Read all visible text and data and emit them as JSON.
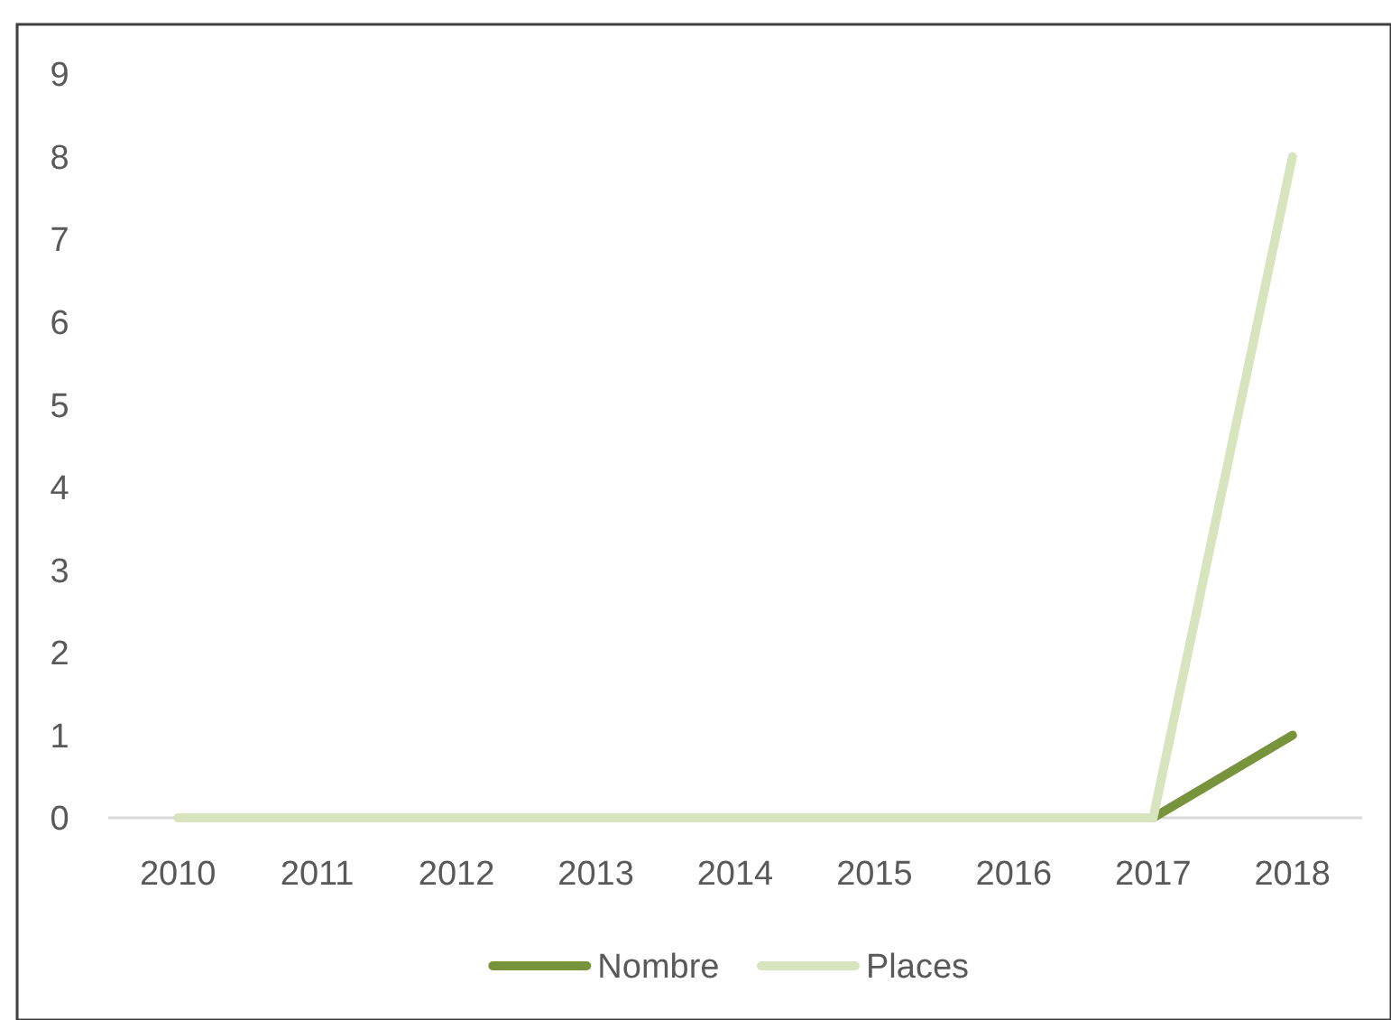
{
  "chart_data": {
    "type": "line",
    "categories": [
      "2010",
      "2011",
      "2012",
      "2013",
      "2014",
      "2015",
      "2016",
      "2017",
      "2018"
    ],
    "series": [
      {
        "name": "Nombre",
        "color": "#77933c",
        "values": [
          null,
          null,
          null,
          null,
          null,
          null,
          null,
          0,
          1
        ]
      },
      {
        "name": "Places",
        "color": "#d7e4bd",
        "values": [
          0,
          0,
          0,
          0,
          0,
          0,
          0,
          0,
          8
        ]
      }
    ],
    "ylim": [
      0,
      9
    ],
    "yticks": [
      0,
      1,
      2,
      3,
      4,
      5,
      6,
      7,
      8,
      9
    ],
    "legend": "bottom"
  }
}
